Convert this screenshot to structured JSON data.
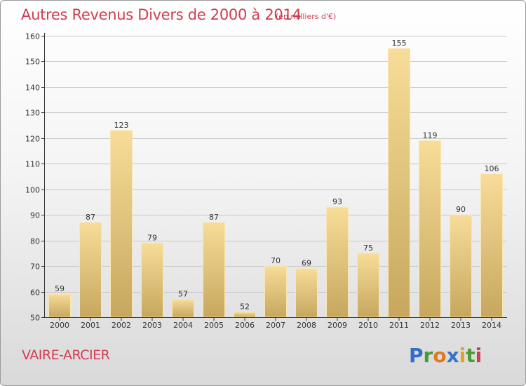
{
  "title": "Autres Revenus Divers de 2000 à 2014",
  "subtitle": "(en milliers d'€)",
  "commune": "VAIRE-ARCIER",
  "logo": {
    "letters": [
      {
        "ch": "P",
        "color": "#2f6fc7"
      },
      {
        "ch": "r",
        "color": "#4a9b34"
      },
      {
        "ch": "o",
        "color": "#e07a1f"
      },
      {
        "ch": "x",
        "color": "#3a72c8"
      },
      {
        "ch": "i",
        "color": "#e2a21e"
      },
      {
        "ch": "t",
        "color": "#4a9b34"
      },
      {
        "ch": "i",
        "color": "#d03d50"
      }
    ]
  },
  "colors": {
    "accent": "#d03d50",
    "bar_light": "#f7dd98",
    "bar_dark": "#c7a75e",
    "axis": "#333333",
    "grid": "#c8c8c8"
  },
  "chart_data": {
    "type": "bar",
    "categories": [
      "2000",
      "2001",
      "2002",
      "2003",
      "2004",
      "2005",
      "2006",
      "2007",
      "2008",
      "2009",
      "2010",
      "2011",
      "2012",
      "2013",
      "2014"
    ],
    "values": [
      59,
      87,
      123,
      79,
      57,
      87,
      52,
      70,
      69,
      93,
      75,
      155,
      119,
      90,
      106
    ],
    "ylim": [
      50,
      160
    ],
    "yticks": [
      50,
      60,
      70,
      80,
      90,
      100,
      110,
      120,
      130,
      140,
      150,
      160
    ],
    "grid": "horizontal",
    "data_labels": true
  }
}
